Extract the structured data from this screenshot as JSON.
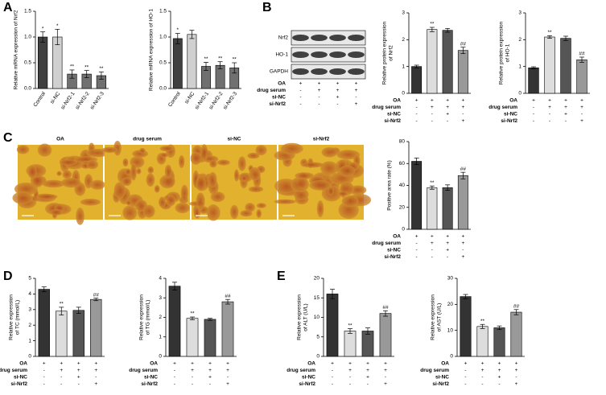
{
  "panels": [
    "A",
    "B",
    "C",
    "D",
    "E"
  ],
  "blot": {
    "bands": [
      "Nrf2",
      "HO-1",
      "GAPDH"
    ],
    "conditions": [
      {
        "name": "OA",
        "signs": [
          "+",
          "+",
          "+",
          "+"
        ]
      },
      {
        "name": "drug serum",
        "signs": [
          "-",
          "+",
          "+",
          "+"
        ]
      },
      {
        "name": "si-NC",
        "signs": [
          "-",
          "-",
          "+",
          "-"
        ]
      },
      {
        "name": "si-Nrf2",
        "signs": [
          "-",
          "-",
          "-",
          "+"
        ]
      }
    ]
  },
  "micrographs": [
    "OA",
    "drug serum",
    "si-NC",
    "si-Nrf2"
  ],
  "chart_data": [
    {
      "type": "bar",
      "y_label": [
        "Relative mRNA expression of Nrf2"
      ],
      "categories": [
        "Control",
        "si-NC",
        "si-Nrf2-1",
        "si-Nrf2-2",
        "si-Nrf2-3"
      ],
      "values": [
        1.0,
        1.0,
        0.28,
        0.28,
        0.25
      ],
      "errors": [
        0.1,
        0.15,
        0.08,
        0.07,
        0.07
      ],
      "colors": [
        "#404040",
        "#d0d0d0",
        "#707070",
        "#707070",
        "#707070"
      ],
      "markers": [
        "*",
        "*",
        "**",
        "**",
        "**"
      ],
      "ylim": [
        0,
        1.5
      ],
      "yticks": [
        {
          "value": 0,
          "label": "0.0"
        },
        {
          "value": 0.5,
          "label": "0.5"
        },
        {
          "value": 1.0,
          "label": "1.0"
        },
        {
          "value": 1.5,
          "label": "1.5"
        }
      ]
    },
    {
      "type": "bar",
      "y_label": [
        "Relative mRNA expression of HO-1"
      ],
      "categories": [
        "Control",
        "si-NC",
        "si-Nrf2-1",
        "si-Nrf2-2",
        "si-Nrf2-3"
      ],
      "values": [
        0.97,
        1.05,
        0.43,
        0.45,
        0.4
      ],
      "errors": [
        0.1,
        0.08,
        0.08,
        0.07,
        0.1
      ],
      "colors": [
        "#404040",
        "#d0d0d0",
        "#707070",
        "#707070",
        "#707070"
      ],
      "markers": [
        "*",
        null,
        "**",
        "**",
        "**"
      ],
      "ylim": [
        0,
        1.5
      ],
      "yticks": [
        {
          "value": 0,
          "label": "0.0"
        },
        {
          "value": 0.5,
          "label": "0.5"
        },
        {
          "value": 1.0,
          "label": "1.0"
        },
        {
          "value": 1.5,
          "label": "1.5"
        }
      ]
    },
    {
      "type": "bar",
      "y_label": [
        "Relative protein expression",
        "of Nrf2"
      ],
      "values": [
        1.0,
        2.38,
        2.35,
        1.6
      ],
      "errors": [
        0.05,
        0.08,
        0.07,
        0.12
      ],
      "colors": [
        "#333333",
        "#dddddd",
        "#555555",
        "#999999"
      ],
      "markers": [
        null,
        "**",
        null,
        "##"
      ],
      "ylim": [
        0,
        3
      ],
      "yticks": [
        0,
        1,
        2,
        3
      ],
      "conditions": [
        {
          "name": "OA",
          "signs": [
            "+",
            "+",
            "+",
            "+"
          ]
        },
        {
          "name": "drug serum",
          "signs": [
            "-",
            "+",
            "+",
            "+"
          ]
        },
        {
          "name": "si-NC",
          "signs": [
            "-",
            "-",
            "+",
            "-"
          ]
        },
        {
          "name": "si-Nrf2",
          "signs": [
            "-",
            "-",
            "-",
            "+"
          ]
        }
      ]
    },
    {
      "type": "bar",
      "y_label": [
        "Relative protein expression",
        "of HO-1"
      ],
      "values": [
        0.95,
        2.1,
        2.05,
        1.25
      ],
      "errors": [
        0.04,
        0.05,
        0.08,
        0.1
      ],
      "colors": [
        "#333333",
        "#dddddd",
        "#555555",
        "#999999"
      ],
      "markers": [
        null,
        "**",
        null,
        "##"
      ],
      "ylim": [
        0,
        3
      ],
      "yticks": [
        0,
        1,
        2,
        3
      ],
      "conditions": [
        {
          "name": "OA",
          "signs": [
            "+",
            "+",
            "+",
            "+"
          ]
        },
        {
          "name": "drug serum",
          "signs": [
            "-",
            "+",
            "+",
            "+"
          ]
        },
        {
          "name": "si-NC",
          "signs": [
            "-",
            "-",
            "+",
            "-"
          ]
        },
        {
          "name": "si-Nrf2",
          "signs": [
            "-",
            "-",
            "-",
            "+"
          ]
        }
      ]
    },
    {
      "type": "bar",
      "y_label": [
        "Positive area rate (%)"
      ],
      "values": [
        62,
        38,
        38,
        49
      ],
      "errors": [
        3,
        1.5,
        2.5,
        3
      ],
      "colors": [
        "#333333",
        "#dddddd",
        "#555555",
        "#999999"
      ],
      "markers": [
        null,
        "**",
        null,
        "##"
      ],
      "ylim": [
        0,
        80
      ],
      "yticks": [
        0,
        20,
        40,
        60,
        80
      ],
      "conditions": [
        {
          "name": "OA",
          "signs": [
            "+",
            "+",
            "+",
            "+"
          ]
        },
        {
          "name": "drug serum",
          "signs": [
            "-",
            "+",
            "+",
            "+"
          ]
        },
        {
          "name": "si-NC",
          "signs": [
            "-",
            "-",
            "+",
            "-"
          ]
        },
        {
          "name": "si-Nrf2",
          "signs": [
            "-",
            "-",
            "-",
            "+"
          ]
        }
      ]
    },
    {
      "type": "bar",
      "y_label": [
        "Relative expression",
        "of TC (mmol/L)"
      ],
      "values": [
        4.3,
        2.9,
        2.95,
        3.65
      ],
      "errors": [
        0.15,
        0.25,
        0.2,
        0.08
      ],
      "colors": [
        "#333333",
        "#dddddd",
        "#555555",
        "#999999"
      ],
      "markers": [
        null,
        "**",
        null,
        "##"
      ],
      "ylim": [
        0,
        5
      ],
      "yticks": [
        0,
        1,
        2,
        3,
        4,
        5
      ],
      "conditions": [
        {
          "name": "OA",
          "signs": [
            "+",
            "+",
            "+",
            "+"
          ]
        },
        {
          "name": "drug serum",
          "signs": [
            "-",
            "+",
            "+",
            "+"
          ]
        },
        {
          "name": "si-NC",
          "signs": [
            "-",
            "-",
            "+",
            "-"
          ]
        },
        {
          "name": "si-Nrf2",
          "signs": [
            "-",
            "-",
            "-",
            "+"
          ]
        }
      ]
    },
    {
      "type": "bar",
      "y_label": [
        "Relative expression",
        "of TG (mmol/L)"
      ],
      "values": [
        3.6,
        1.95,
        1.9,
        2.8
      ],
      "errors": [
        0.2,
        0.07,
        0.05,
        0.12
      ],
      "colors": [
        "#333333",
        "#dddddd",
        "#555555",
        "#999999"
      ],
      "markers": [
        null,
        "**",
        null,
        "##"
      ],
      "ylim": [
        0,
        4
      ],
      "yticks": [
        0,
        1,
        2,
        3,
        4
      ],
      "conditions": [
        {
          "name": "OA",
          "signs": [
            "+",
            "+",
            "+",
            "+"
          ]
        },
        {
          "name": "drug serum",
          "signs": [
            "-",
            "+",
            "+",
            "+"
          ]
        },
        {
          "name": "si-NC",
          "signs": [
            "-",
            "-",
            "+",
            "-"
          ]
        },
        {
          "name": "si-Nrf2",
          "signs": [
            "-",
            "-",
            "-",
            "+"
          ]
        }
      ]
    },
    {
      "type": "bar",
      "y_label": [
        "Relative expression",
        "of ALT (U/L)"
      ],
      "values": [
        16,
        6.5,
        6.5,
        11
      ],
      "errors": [
        1.2,
        0.6,
        0.8,
        0.7
      ],
      "colors": [
        "#333333",
        "#dddddd",
        "#555555",
        "#999999"
      ],
      "markers": [
        null,
        "**",
        null,
        "##"
      ],
      "ylim": [
        0,
        20
      ],
      "yticks": [
        0,
        5,
        10,
        15,
        20
      ],
      "conditions": [
        {
          "name": "OA",
          "signs": [
            "+",
            "+",
            "+",
            "+"
          ]
        },
        {
          "name": "drug serum",
          "signs": [
            "-",
            "+",
            "+",
            "+"
          ]
        },
        {
          "name": "si-NC",
          "signs": [
            "-",
            "-",
            "+",
            "-"
          ]
        },
        {
          "name": "si-Nrf2",
          "signs": [
            "-",
            "-",
            "-",
            "+"
          ]
        }
      ]
    },
    {
      "type": "bar",
      "y_label": [
        "Relative expression",
        "of AST (U/L)"
      ],
      "values": [
        23,
        11.5,
        11,
        17
      ],
      "errors": [
        0.8,
        0.8,
        0.7,
        1
      ],
      "colors": [
        "#333333",
        "#dddddd",
        "#555555",
        "#999999"
      ],
      "markers": [
        null,
        "**",
        null,
        "##"
      ],
      "ylim": [
        0,
        30
      ],
      "yticks": [
        0,
        10,
        20,
        30
      ],
      "conditions": [
        {
          "name": "OA",
          "signs": [
            "+",
            "+",
            "+",
            "+"
          ]
        },
        {
          "name": "drug serum",
          "signs": [
            "-",
            "+",
            "+",
            "+"
          ]
        },
        {
          "name": "si-NC",
          "signs": [
            "-",
            "-",
            "+",
            "-"
          ]
        },
        {
          "name": "si-Nrf2",
          "signs": [
            "-",
            "-",
            "-",
            "+"
          ]
        }
      ]
    }
  ]
}
